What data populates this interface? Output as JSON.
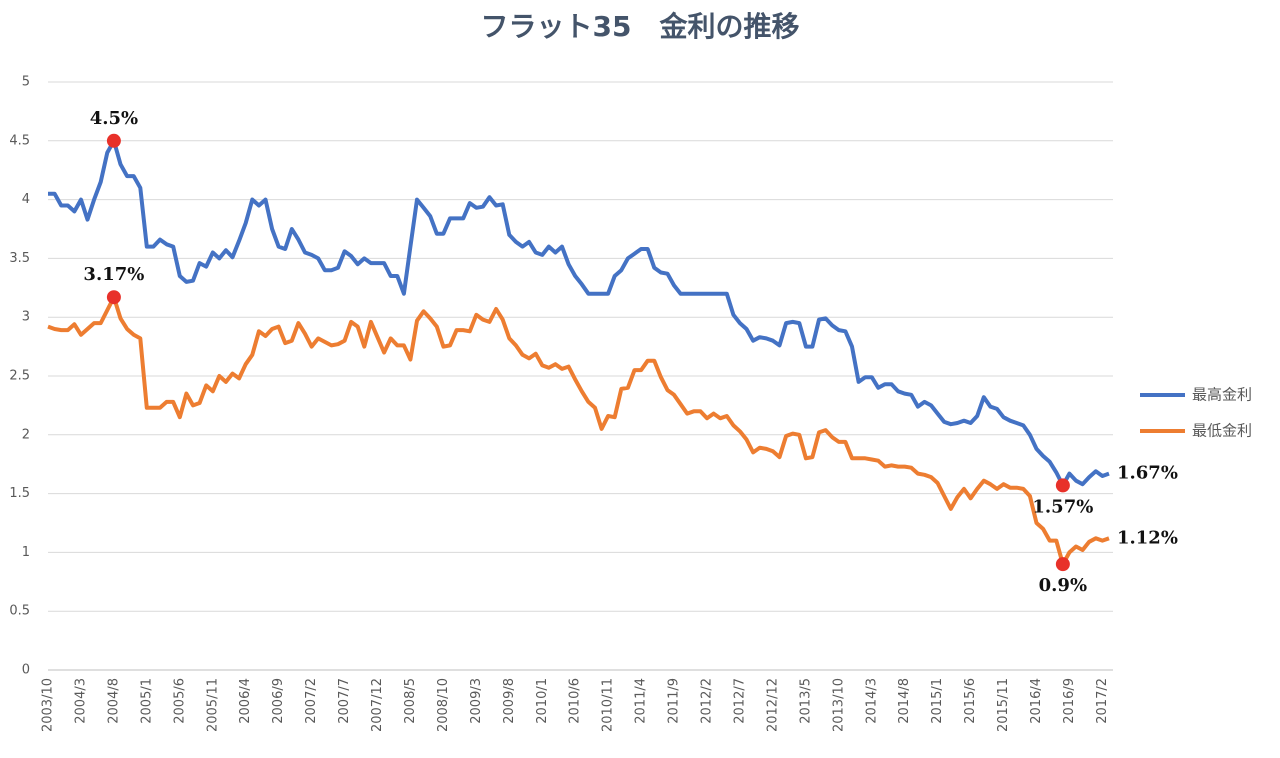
{
  "chart_data": {
    "type": "line",
    "title": "フラット35　金利の推移",
    "categories": [
      "2003/10",
      null,
      null,
      null,
      null,
      "2004/3",
      null,
      null,
      null,
      null,
      "2004/8",
      null,
      null,
      null,
      null,
      "2005/1",
      null,
      null,
      null,
      null,
      "2005/6",
      null,
      null,
      null,
      null,
      "2005/11",
      null,
      null,
      null,
      null,
      "2006/4",
      null,
      null,
      null,
      null,
      "2006/9",
      null,
      null,
      null,
      null,
      "2007/2",
      null,
      null,
      null,
      null,
      "2007/7",
      null,
      null,
      null,
      null,
      "2007/12",
      null,
      null,
      null,
      null,
      "2008/5",
      null,
      null,
      null,
      null,
      "2008/10",
      null,
      null,
      null,
      null,
      "2009/3",
      null,
      null,
      null,
      null,
      "2009/8",
      null,
      null,
      null,
      null,
      "2010/1",
      null,
      null,
      null,
      null,
      "2010/6",
      null,
      null,
      null,
      null,
      "2010/11",
      null,
      null,
      null,
      null,
      "2011/4",
      null,
      null,
      null,
      null,
      "2011/9",
      null,
      null,
      null,
      null,
      "2012/2",
      null,
      null,
      null,
      null,
      "2012/7",
      null,
      null,
      null,
      null,
      "2012/12",
      null,
      null,
      null,
      null,
      "2013/5",
      null,
      null,
      null,
      null,
      "2013/10",
      null,
      null,
      null,
      null,
      "2014/3",
      null,
      null,
      null,
      null,
      "2014/8",
      null,
      null,
      null,
      null,
      "2015/1",
      null,
      null,
      null,
      null,
      "2015/6",
      null,
      null,
      null,
      null,
      "2015/11",
      null,
      null,
      null,
      null,
      "2016/4",
      null,
      null,
      null,
      null,
      "2016/9",
      null,
      null,
      null,
      null,
      "2017/2",
      null
    ],
    "series": [
      {
        "name": "最高金利",
        "color": "#4472c4",
        "values": [
          4.05,
          4.05,
          3.95,
          3.95,
          3.9,
          4.0,
          3.83,
          4.0,
          4.15,
          4.4,
          4.5,
          4.3,
          4.2,
          4.2,
          4.1,
          3.6,
          3.6,
          3.66,
          3.62,
          3.6,
          3.35,
          3.3,
          3.31,
          3.46,
          3.43,
          3.55,
          3.5,
          3.57,
          3.51,
          3.65,
          3.8,
          4.0,
          3.95,
          4.0,
          3.75,
          3.6,
          3.58,
          3.75,
          3.66,
          3.55,
          3.53,
          3.5,
          3.4,
          3.4,
          3.42,
          3.56,
          3.52,
          3.45,
          3.5,
          3.46,
          3.46,
          3.46,
          3.35,
          3.35,
          3.2,
          3.6,
          4.0,
          3.93,
          3.86,
          3.71,
          3.71,
          3.84,
          3.84,
          3.84,
          3.97,
          3.93,
          3.94,
          4.02,
          3.95,
          3.96,
          3.7,
          3.64,
          3.6,
          3.64,
          3.55,
          3.53,
          3.6,
          3.55,
          3.6,
          3.45,
          3.35,
          3.28,
          3.2,
          3.2,
          3.2,
          3.2,
          3.35,
          3.4,
          3.5,
          3.54,
          3.58,
          3.58,
          3.42,
          3.38,
          3.37,
          3.27,
          3.2,
          3.2,
          3.2,
          3.2,
          3.2,
          3.2,
          3.2,
          3.2,
          3.02,
          2.95,
          2.9,
          2.8,
          2.83,
          2.82,
          2.8,
          2.76,
          2.95,
          2.96,
          2.95,
          2.75,
          2.75,
          2.98,
          2.99,
          2.93,
          2.89,
          2.88,
          2.75,
          2.45,
          2.49,
          2.49,
          2.4,
          2.43,
          2.43,
          2.37,
          2.35,
          2.34,
          2.24,
          2.28,
          2.25,
          2.18,
          2.11,
          2.09,
          2.1,
          2.12,
          2.1,
          2.16,
          2.32,
          2.24,
          2.22,
          2.15,
          2.12,
          2.1,
          2.08,
          2.0,
          1.88,
          1.82,
          1.77,
          1.68,
          1.57,
          1.67,
          1.61,
          1.58,
          1.64,
          1.69,
          1.65,
          1.67
        ],
        "value_labels": [
          null,
          null,
          null,
          null,
          null,
          null,
          null,
          null,
          null,
          null,
          "4.5%",
          null,
          null,
          null,
          null,
          null,
          null,
          null,
          null,
          null,
          null,
          null,
          null,
          null,
          null,
          null,
          null,
          null,
          null,
          null,
          null,
          null,
          null,
          null,
          null,
          null,
          null,
          null,
          null,
          null,
          null,
          null,
          null,
          null,
          null,
          null,
          null,
          null,
          null,
          null,
          null,
          null,
          null,
          null,
          null,
          null,
          null,
          null,
          null,
          null,
          null,
          null,
          null,
          null,
          null,
          null,
          null,
          null,
          null,
          null,
          null,
          null,
          null,
          null,
          null,
          null,
          null,
          null,
          null,
          null,
          null,
          null,
          null,
          null,
          null,
          null,
          null,
          null,
          null,
          null,
          null,
          null,
          null,
          null,
          null,
          null,
          null,
          null,
          null,
          null,
          null,
          null,
          null,
          null,
          null,
          null,
          null,
          null,
          null,
          null,
          null,
          null,
          null,
          null,
          null,
          null,
          null,
          null,
          null,
          null,
          null,
          null,
          null,
          null,
          null,
          null,
          null,
          null,
          null,
          null,
          null,
          null,
          null,
          null,
          null,
          null,
          null,
          null,
          null,
          null,
          null,
          null,
          null,
          null,
          null,
          null,
          null,
          null,
          null,
          null,
          null,
          null,
          null,
          null,
          "1.57%",
          null,
          null,
          null,
          null,
          null,
          null,
          "1.67%"
        ]
      },
      {
        "name": "最低金利",
        "color": "#ed7d31",
        "values": [
          2.92,
          2.9,
          2.89,
          2.89,
          2.94,
          2.85,
          2.9,
          2.95,
          2.95,
          3.06,
          3.17,
          2.99,
          2.9,
          2.85,
          2.82,
          2.23,
          2.23,
          2.23,
          2.28,
          2.28,
          2.15,
          2.35,
          2.25,
          2.27,
          2.42,
          2.37,
          2.5,
          2.45,
          2.52,
          2.48,
          2.6,
          2.68,
          2.88,
          2.84,
          2.9,
          2.92,
          2.78,
          2.8,
          2.95,
          2.86,
          2.75,
          2.82,
          2.79,
          2.76,
          2.77,
          2.8,
          2.96,
          2.92,
          2.75,
          2.96,
          2.83,
          2.7,
          2.82,
          2.76,
          2.76,
          2.64,
          2.97,
          3.05,
          2.99,
          2.92,
          2.75,
          2.76,
          2.89,
          2.89,
          2.88,
          3.02,
          2.98,
          2.96,
          3.07,
          2.98,
          2.82,
          2.76,
          2.68,
          2.65,
          2.69,
          2.59,
          2.57,
          2.6,
          2.56,
          2.58,
          2.47,
          2.37,
          2.28,
          2.23,
          2.05,
          2.16,
          2.15,
          2.39,
          2.4,
          2.55,
          2.55,
          2.63,
          2.63,
          2.49,
          2.38,
          2.34,
          2.26,
          2.18,
          2.2,
          2.2,
          2.14,
          2.18,
          2.14,
          2.16,
          2.08,
          2.03,
          1.96,
          1.85,
          1.89,
          1.88,
          1.86,
          1.81,
          1.99,
          2.01,
          2.0,
          1.8,
          1.81,
          2.02,
          2.04,
          1.98,
          1.94,
          1.94,
          1.8,
          1.8,
          1.8,
          1.79,
          1.78,
          1.73,
          1.74,
          1.73,
          1.73,
          1.72,
          1.67,
          1.66,
          1.64,
          1.59,
          1.48,
          1.37,
          1.47,
          1.54,
          1.46,
          1.54,
          1.61,
          1.58,
          1.54,
          1.58,
          1.55,
          1.55,
          1.54,
          1.48,
          1.25,
          1.2,
          1.1,
          1.1,
          0.9,
          1.0,
          1.05,
          1.02,
          1.09,
          1.12,
          1.1,
          1.12
        ],
        "value_labels": [
          null,
          null,
          null,
          null,
          null,
          null,
          null,
          null,
          null,
          null,
          "3.17%",
          null,
          null,
          null,
          null,
          null,
          null,
          null,
          null,
          null,
          null,
          null,
          null,
          null,
          null,
          null,
          null,
          null,
          null,
          null,
          null,
          null,
          null,
          null,
          null,
          null,
          null,
          null,
          null,
          null,
          null,
          null,
          null,
          null,
          null,
          null,
          null,
          null,
          null,
          null,
          null,
          null,
          null,
          null,
          null,
          null,
          null,
          null,
          null,
          null,
          null,
          null,
          null,
          null,
          null,
          null,
          null,
          null,
          null,
          null,
          null,
          null,
          null,
          null,
          null,
          null,
          null,
          null,
          null,
          null,
          null,
          null,
          null,
          null,
          null,
          null,
          null,
          null,
          null,
          null,
          null,
          null,
          null,
          null,
          null,
          null,
          null,
          null,
          null,
          null,
          null,
          null,
          null,
          null,
          null,
          null,
          null,
          null,
          null,
          null,
          null,
          null,
          null,
          null,
          null,
          null,
          null,
          null,
          null,
          null,
          null,
          null,
          null,
          null,
          null,
          null,
          null,
          null,
          null,
          null,
          null,
          null,
          null,
          null,
          null,
          null,
          null,
          null,
          null,
          null,
          null,
          null,
          null,
          null,
          null,
          null,
          null,
          null,
          null,
          null,
          null,
          null,
          null,
          null,
          "0.9%",
          null,
          null,
          null,
          null,
          null,
          null,
          "1.12%"
        ]
      }
    ],
    "ylim": [
      0,
      5
    ],
    "yticks": [
      0,
      0.5,
      1,
      1.5,
      2,
      2.5,
      3,
      3.5,
      4,
      4.5,
      5
    ],
    "grid": true,
    "legend": "right",
    "marker_color": "#e8312a"
  }
}
